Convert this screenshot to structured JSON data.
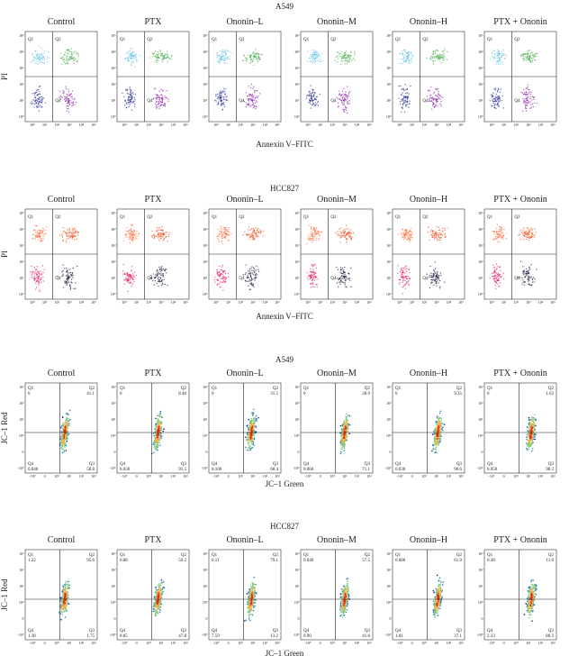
{
  "sections": [
    {
      "title": "A549",
      "kind": "annexin",
      "ylabel": "PI",
      "xlabel": "Annexin V–FITC",
      "quadrant_labels": [
        "Q1",
        "Q2",
        "Q4"
      ],
      "xticks": [
        "10⁰",
        "10¹",
        "10²",
        "10³",
        "10⁴",
        "10⁵"
      ],
      "yticks": [
        "10⁵",
        "10⁴",
        "10³",
        "10²",
        "10¹",
        "10⁰"
      ],
      "plots": [
        {
          "title": "Control"
        },
        {
          "title": "PTX"
        },
        {
          "title": "Ononin–L"
        },
        {
          "title": "Ononin–M"
        },
        {
          "title": "Ononin–H"
        },
        {
          "title": "PTX + Ononin"
        }
      ]
    },
    {
      "title": "HCC827",
      "kind": "annexin",
      "ylabel": "PI",
      "xlabel": "Annexin V–FITC",
      "quadrant_labels": [
        "Q1",
        "Q2",
        "Q4"
      ],
      "xticks": [
        "10⁰",
        "10¹",
        "10²",
        "10³",
        "10⁴",
        "10⁵"
      ],
      "yticks": [
        "10⁵",
        "10⁴",
        "10³",
        "10²",
        "10¹",
        "10⁰"
      ],
      "plots": [
        {
          "title": "Control"
        },
        {
          "title": "PTX"
        },
        {
          "title": "Ononin–L"
        },
        {
          "title": "Ononin–M"
        },
        {
          "title": "Ononin–H"
        },
        {
          "title": "PTX + Ononin"
        }
      ]
    },
    {
      "title": "A549",
      "kind": "jc1",
      "ylabel": "JC–1 Red",
      "xlabel": "JC–1 Green",
      "xticks": [
        "-10⁰",
        "0",
        "10⁰",
        "10¹",
        "10²",
        "10³"
      ],
      "yticks": [
        "10³",
        "10²",
        "10¹",
        "10⁰",
        "0",
        "-10⁰"
      ],
      "plots": [
        {
          "title": "Control",
          "quadrants": [
            [
              "Q1",
              "0"
            ],
            [
              "Q2",
              "41.1"
            ],
            [
              "Q4",
              "0.040"
            ],
            [
              "Q3",
              "58.8"
            ]
          ]
        },
        {
          "title": "PTX",
          "quadrants": [
            [
              "Q1",
              "0"
            ],
            [
              "Q2",
              "8.48"
            ],
            [
              "Q4",
              "0.030"
            ],
            [
              "Q3",
              "91.5"
            ]
          ]
        },
        {
          "title": "Ononin–L",
          "quadrants": [
            [
              "Q1",
              "0"
            ],
            [
              "Q2",
              "31.5"
            ],
            [
              "Q4",
              "0.100"
            ],
            [
              "Q3",
              "68.4"
            ]
          ]
        },
        {
          "title": "Ononin–M",
          "quadrants": [
            [
              "Q1",
              "0"
            ],
            [
              "Q2",
              "28.9"
            ],
            [
              "Q4",
              "0.060"
            ],
            [
              "Q3",
              "71.1"
            ]
          ]
        },
        {
          "title": "Ononin–H",
          "quadrants": [
            [
              "Q1",
              "0"
            ],
            [
              "Q2",
              "9.35"
            ],
            [
              "Q4",
              "0.030"
            ],
            [
              "Q3",
              "90.6"
            ]
          ]
        },
        {
          "title": "PTX + Ononin",
          "quadrants": [
            [
              "Q1",
              "0"
            ],
            [
              "Q2",
              "1.63"
            ],
            [
              "Q4",
              "0.050"
            ],
            [
              "Q3",
              "98.3"
            ]
          ]
        }
      ]
    },
    {
      "title": "HCC827",
      "kind": "jc1",
      "ylabel": "JC–1 Red",
      "xlabel": "JC–1 Green",
      "xticks": [
        "-10⁰",
        "0",
        "10⁰",
        "10¹",
        "10²",
        "10³"
      ],
      "yticks": [
        "10³",
        "10²",
        "10¹",
        "10⁰",
        "0",
        "-10⁰"
      ],
      "plots": [
        {
          "title": "Control",
          "quadrants": [
            [
              "Q1",
              "1.22"
            ],
            [
              "Q2",
              "95.6"
            ],
            [
              "Q4",
              "1.38"
            ],
            [
              "Q3",
              "1.75"
            ]
          ]
        },
        {
          "title": "PTX",
          "quadrants": [
            [
              "Q1",
              "0.88"
            ],
            [
              "Q2",
              "50.2"
            ],
            [
              "Q4",
              "0.85"
            ],
            [
              "Q3",
              "47.8"
            ]
          ]
        },
        {
          "title": "Ononin–L",
          "quadrants": [
            [
              "Q1",
              "0.11"
            ],
            [
              "Q2",
              "79.1"
            ],
            [
              "Q4",
              "7.59"
            ],
            [
              "Q3",
              "13.2"
            ]
          ]
        },
        {
          "title": "Ononin–M",
          "quadrants": [
            [
              "Q1",
              "0.040"
            ],
            [
              "Q2",
              "57.5"
            ],
            [
              "Q4",
              "0.90"
            ],
            [
              "Q3",
              "41.6"
            ]
          ]
        },
        {
          "title": "Ononin–H",
          "quadrants": [
            [
              "Q1",
              "0.080"
            ],
            [
              "Q2",
              "61.0"
            ],
            [
              "Q4",
              "1.81"
            ],
            [
              "Q3",
              "37.1"
            ]
          ]
        },
        {
          "title": "PTX + Ononin",
          "quadrants": [
            [
              "Q1",
              "0.38"
            ],
            [
              "Q2",
              "11.0"
            ],
            [
              "Q4",
              "2.33"
            ],
            [
              "Q3",
              "86.3"
            ]
          ]
        }
      ]
    }
  ]
}
